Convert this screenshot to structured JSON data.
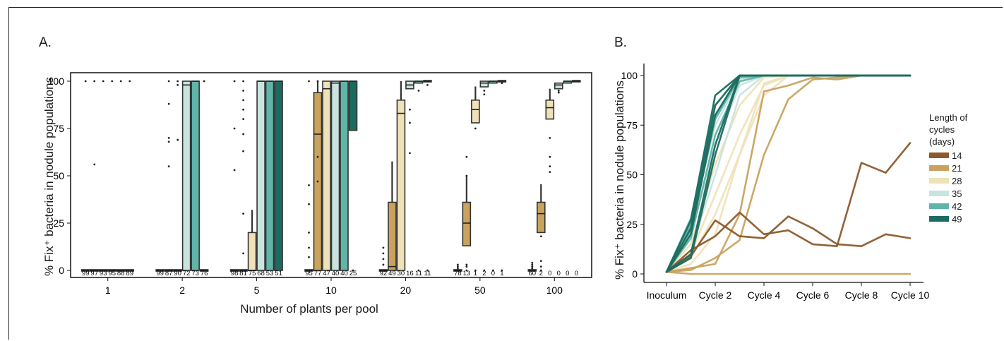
{
  "panels": {
    "a_label": "A.",
    "b_label": "B."
  },
  "chart_data": [
    {
      "type": "box",
      "panel": "A.",
      "xlabel": "Number of plants per pool",
      "ylabel": "% Fix⁺ bacteria in nodule populations",
      "ylim": [
        0,
        100
      ],
      "yticks": [
        0,
        25,
        50,
        75,
        100
      ],
      "categories": [
        "1",
        "2",
        "5",
        "10",
        "20",
        "50",
        "100"
      ],
      "series_order": [
        "14",
        "21",
        "28",
        "35",
        "42",
        "49"
      ],
      "colors": {
        "14": "#8c5a2b",
        "21": "#c9a25e",
        "28": "#f0e2b8",
        "35": "#c8e4df",
        "42": "#5fb5a8",
        "49": "#1d6b60"
      },
      "groups": [
        {
          "category": "1",
          "counts": [
            "99",
            "97",
            "93",
            "95",
            "88",
            "89"
          ],
          "boxes": [
            [
              0,
              0,
              0
            ],
            [
              0,
              0,
              0
            ],
            [
              0,
              0,
              0
            ],
            [
              0,
              0,
              0
            ],
            [
              0,
              0,
              0
            ],
            [
              0,
              0,
              0
            ]
          ],
          "outliers": [
            [
              100
            ],
            [
              56,
              100
            ],
            [
              100
            ],
            [
              100
            ],
            [
              100
            ],
            [
              100
            ]
          ]
        },
        {
          "category": "2",
          "counts": [
            "99",
            "87",
            "90",
            "72",
            "73",
            "76"
          ],
          "boxes": [
            [
              0,
              0,
              0
            ],
            [
              0,
              0,
              0
            ],
            [
              0,
              0,
              0
            ],
            [
              0,
              100,
              98
            ],
            [
              0,
              100,
              100
            ],
            [
              0,
              0,
              0
            ]
          ],
          "outliers": [
            [],
            [
              55,
              68,
              70,
              88,
              100
            ],
            [
              69,
              98,
              100
            ],
            [],
            [],
            [
              100
            ]
          ]
        },
        {
          "category": "5",
          "counts": [
            "98",
            "81",
            "75",
            "68",
            "53",
            "51"
          ],
          "boxes": [
            [
              0,
              0,
              0
            ],
            [
              0,
              0,
              0
            ],
            [
              0,
              20,
              0
            ],
            [
              0,
              100,
              100
            ],
            [
              0,
              100,
              100
            ],
            [
              0,
              100,
              100
            ]
          ],
          "outliers": [
            [
              53,
              75,
              100
            ],
            [
              9,
              30,
              63,
              72,
              80,
              85,
              90,
              95,
              100
            ],
            [],
            [],
            [],
            []
          ]
        },
        {
          "category": "10",
          "counts": [
            "95",
            "77",
            "47",
            "40",
            "40",
            "25"
          ],
          "boxes": [
            [
              0,
              0,
              0
            ],
            [
              0,
              94,
              72
            ],
            [
              0,
              100,
              96
            ],
            [
              0,
              100,
              99
            ],
            [
              0,
              100,
              100
            ],
            [
              74,
              100,
              100
            ]
          ],
          "outliers": [
            [
              7,
              12,
              20,
              35,
              45,
              100
            ],
            [
              47,
              60,
              100
            ],
            [],
            [],
            [],
            [
              0
            ]
          ]
        },
        {
          "category": "20",
          "counts": [
            "92",
            "49",
            "30",
            "16",
            "11",
            "11"
          ],
          "boxes": [
            [
              0,
              0,
              0
            ],
            [
              0,
              36,
              2
            ],
            [
              0,
              90,
              83
            ],
            [
              96,
              100,
              98
            ],
            [
              99,
              100,
              100
            ],
            [
              100,
              100,
              100
            ]
          ],
          "outliers": [
            [
              3,
              6,
              9,
              12
            ],
            [],
            [],
            [
              62,
              78,
              85
            ],
            [
              0,
              95
            ],
            [
              0,
              98
            ]
          ]
        },
        {
          "category": "50",
          "counts": [
            "78",
            "13",
            "1",
            "2",
            "0",
            "1"
          ],
          "boxes": [
            [
              0,
              0,
              0
            ],
            [
              13,
              36,
              25
            ],
            [
              78,
              90,
              85
            ],
            [
              97,
              100,
              99
            ],
            [
              99,
              100,
              100
            ],
            [
              100,
              100,
              100
            ]
          ],
          "outliers": [
            [
              1,
              2,
              3
            ],
            [
              0,
              2,
              3,
              50,
              60
            ],
            [
              0,
              75
            ],
            [
              0,
              93,
              95
            ],
            [
              0
            ],
            [
              0,
              99
            ]
          ]
        },
        {
          "category": "100",
          "counts": [
            "60",
            "2",
            "0",
            "0",
            "0",
            "0"
          ],
          "boxes": [
            [
              0,
              0,
              0
            ],
            [
              20,
              36,
              30
            ],
            [
              80,
              90,
              86
            ],
            [
              96,
              99,
              98
            ],
            [
              99,
              100,
              100
            ],
            [
              100,
              100,
              100
            ]
          ],
          "outliers": [
            [
              1,
              2,
              3,
              4
            ],
            [
              0,
              2,
              5,
              18
            ],
            [
              52,
              55,
              60,
              70
            ],
            [
              94,
              95
            ],
            [],
            []
          ]
        }
      ]
    },
    {
      "type": "line",
      "panel": "B.",
      "xlabel": "",
      "ylabel": "% Fix⁺ bacteria in nodule populations",
      "ylim": [
        0,
        100
      ],
      "yticks": [
        0,
        25,
        50,
        75,
        100
      ],
      "x": [
        0,
        1,
        2,
        3,
        4,
        5,
        6,
        7,
        8,
        9,
        10
      ],
      "x_tick_labels": [
        "Inoculum",
        "Cycle 2",
        "Cycle 4",
        "Cycle 6",
        "Cycle 8",
        "Cycle 10"
      ],
      "legend_title": "Length of\ncycles\n(days)",
      "series": [
        {
          "name": "14",
          "color": "#8c5a2b",
          "lines": [
            [
              1,
              9,
              27,
              19,
              18,
              29,
              23,
              15,
              14,
              20,
              18
            ],
            [
              1,
              12,
              19,
              31,
              20,
              22,
              15,
              14,
              56,
              51,
              66
            ]
          ]
        },
        {
          "name": "21",
          "color": "#c9a25e",
          "lines": [
            [
              1,
              0,
              0,
              0,
              0,
              0,
              0,
              0,
              0,
              0,
              0
            ],
            [
              1,
              2,
              8,
              17,
              60,
              88,
              98,
              99,
              100,
              100,
              100
            ],
            [
              1,
              3,
              5,
              30,
              92,
              95,
              99,
              98,
              100,
              100,
              100
            ]
          ]
        },
        {
          "name": "28",
          "color": "#f0e2b8",
          "lines": [
            [
              1,
              10,
              40,
              70,
              95,
              100,
              100,
              100,
              100,
              100,
              100
            ],
            [
              1,
              8,
              30,
              60,
              96,
              100,
              100,
              100,
              100,
              100,
              100
            ],
            [
              1,
              15,
              55,
              85,
              99,
              100,
              100,
              100,
              100,
              100,
              100
            ],
            [
              1,
              5,
              20,
              60,
              90,
              100,
              100,
              100,
              100,
              100,
              100
            ]
          ]
        },
        {
          "name": "35",
          "color": "#c8e4df",
          "lines": [
            [
              1,
              20,
              65,
              95,
              100,
              100,
              100,
              100,
              100,
              100,
              100
            ],
            [
              1,
              25,
              75,
              98,
              100,
              100,
              100,
              100,
              100,
              100,
              100
            ],
            [
              1,
              12,
              50,
              90,
              100,
              100,
              100,
              100,
              100,
              100,
              100
            ]
          ]
        },
        {
          "name": "42",
          "color": "#5fb5a8",
          "lines": [
            [
              1,
              25,
              80,
              100,
              100,
              100,
              100,
              100,
              100,
              100,
              100
            ],
            [
              1,
              22,
              78,
              99,
              100,
              100,
              100,
              100,
              100,
              100,
              100
            ],
            [
              1,
              18,
              70,
              97,
              100,
              100,
              100,
              100,
              100,
              100,
              100
            ],
            [
              1,
              28,
              85,
              100,
              100,
              100,
              100,
              100,
              100,
              100,
              100
            ]
          ]
        },
        {
          "name": "49",
          "color": "#1d6b60",
          "lines": [
            [
              1,
              27,
              90,
              100,
              100,
              100,
              100,
              100,
              100,
              100,
              100
            ],
            [
              1,
              23,
              85,
              100,
              100,
              100,
              100,
              100,
              100,
              100,
              100
            ],
            [
              1,
              20,
              80,
              100,
              100,
              100,
              100,
              100,
              100,
              100,
              100
            ],
            [
              1,
              10,
              65,
              100,
              100,
              100,
              100,
              100,
              100,
              100,
              100
            ],
            [
              1,
              8,
              60,
              100,
              100,
              100,
              100,
              100,
              100,
              100,
              100
            ]
          ]
        }
      ]
    }
  ]
}
